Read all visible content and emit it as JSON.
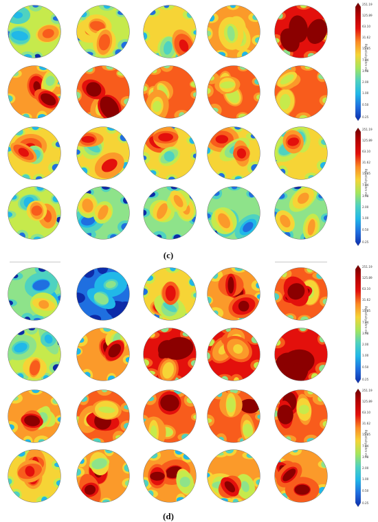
{
  "panels": [
    {
      "label": "(c)",
      "colorbars": [
        {
          "ticks": [
            "251.19",
            "125.89",
            "63.10",
            "31.62",
            "15.85",
            "7.94",
            "3.98",
            "2.00",
            "1.00",
            "0.50",
            "0.25"
          ],
          "unit": "Resistivity(ohm-m)"
        },
        {
          "ticks": [
            "251.19",
            "125.89",
            "63.10",
            "31.62",
            "15.85",
            "7.94",
            "3.98",
            "2.00",
            "1.00",
            "0.50",
            "0.25"
          ],
          "unit": "Resistivity(ohm-m)"
        }
      ]
    },
    {
      "label": "(d)",
      "colorbars": [
        {
          "ticks": [
            "251.19",
            "125.89",
            "63.10",
            "31.62",
            "15.85",
            "7.94",
            "3.98",
            "2.00",
            "1.00",
            "0.50",
            "0.25"
          ],
          "unit": "Resistivity(ohm-m)"
        },
        {
          "ticks": [
            "251.19",
            "125.89",
            "63.10",
            "31.62",
            "15.85",
            "7.94",
            "3.98",
            "2.00",
            "1.00",
            "0.50",
            "0.25"
          ],
          "unit": "Resistivity(ohm-m)"
        }
      ]
    }
  ],
  "colors": {
    "dark_red": "#8b0000",
    "red": "#e3100c",
    "orange_red": "#f85c1c",
    "orange": "#fb9a2a",
    "yellow": "#f6d436",
    "yellow_green": "#c6ea4c",
    "light_green": "#8ee38a",
    "cyan_green": "#4fd2c0",
    "cyan": "#21b8e8",
    "blue": "#1f6fe0",
    "dark_blue": "#0d2ba8"
  }
}
